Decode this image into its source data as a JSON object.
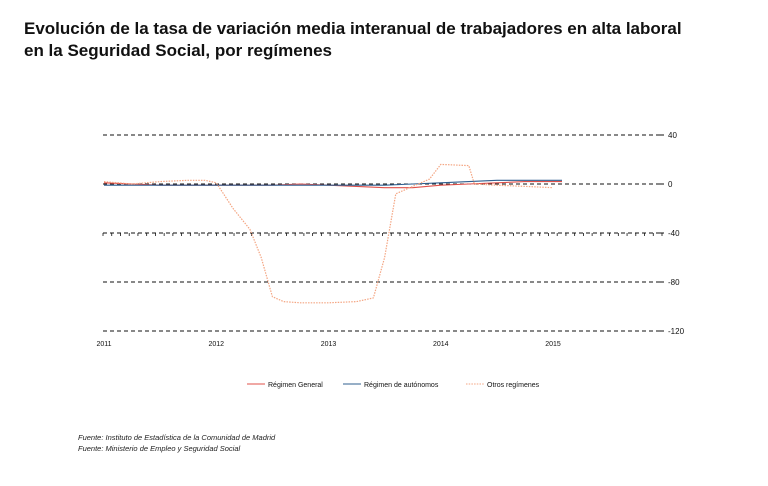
{
  "title": {
    "line1": "Evolución de la tasa de variación media interanual de trabajadores en alta laboral",
    "line2": "en la Seguridad Social, por  regímenes"
  },
  "sources": [
    "Fuente: Instituto de Estadística de la Comunidad de Madrid",
    "Fuente: Ministerio de Empleo y Seguridad Social"
  ],
  "colors": {
    "general": "#e0504a",
    "autonomos": "#2f5f8f",
    "otros": "#f4a582"
  },
  "chart_data": {
    "type": "line",
    "title": "Evolución de la tasa de variación media interanual de trabajadores en alta laboral en la Seguridad Social, por  regímenes",
    "xlabel": "",
    "ylabel": "",
    "y_axis_side": "right",
    "ylim": [
      -120,
      40
    ],
    "yticks": [
      40,
      0,
      -40,
      -80,
      -120
    ],
    "xlim": [
      2011,
      2016
    ],
    "xticks": [
      2011,
      2012,
      2013,
      2014,
      2015
    ],
    "grid": "dashed horizontal",
    "legend_position": "bottom",
    "series": [
      {
        "name": "Régimen General",
        "style": "solid",
        "x": [
          2011.0,
          2011.25,
          2011.5,
          2011.75,
          2012.0,
          2012.25,
          2012.5,
          2012.75,
          2013.0,
          2013.25,
          2013.5,
          2013.75,
          2014.0,
          2014.25,
          2014.5,
          2014.75,
          2015.0,
          2015.08
        ],
        "values": [
          1,
          0,
          -1,
          -1,
          -1,
          -1,
          -1,
          0,
          -1,
          -2,
          -3,
          -3,
          -1,
          0,
          1,
          2,
          2,
          2
        ]
      },
      {
        "name": "Régimen de autónomos",
        "style": "solid",
        "x": [
          2011.0,
          2011.25,
          2011.5,
          2011.75,
          2012.0,
          2012.25,
          2012.5,
          2012.75,
          2013.0,
          2013.25,
          2013.5,
          2013.75,
          2014.0,
          2014.25,
          2014.5,
          2014.75,
          2015.0,
          2015.08
        ],
        "values": [
          -1,
          -1,
          -1,
          -1,
          -1,
          -1,
          -1,
          -1,
          -1,
          -1,
          -1,
          0,
          1,
          2,
          3,
          3,
          3,
          3
        ]
      },
      {
        "name": "Otros regímenes",
        "style": "dotted",
        "x": [
          2011.0,
          2011.25,
          2011.5,
          2011.75,
          2011.9,
          2012.0,
          2012.15,
          2012.3,
          2012.4,
          2012.5,
          2012.6,
          2012.75,
          2013.0,
          2013.25,
          2013.4,
          2013.5,
          2013.6,
          2013.75,
          2013.9,
          2014.0,
          2014.25,
          2014.3,
          2014.5,
          2014.75,
          2015.0
        ],
        "values": [
          2,
          0,
          2,
          3,
          3,
          1,
          -20,
          -37,
          -60,
          -92,
          -96,
          -97,
          -97,
          -96,
          -93,
          -60,
          -8,
          -2,
          4,
          16,
          15,
          0,
          -1,
          -2,
          -3
        ]
      }
    ]
  }
}
